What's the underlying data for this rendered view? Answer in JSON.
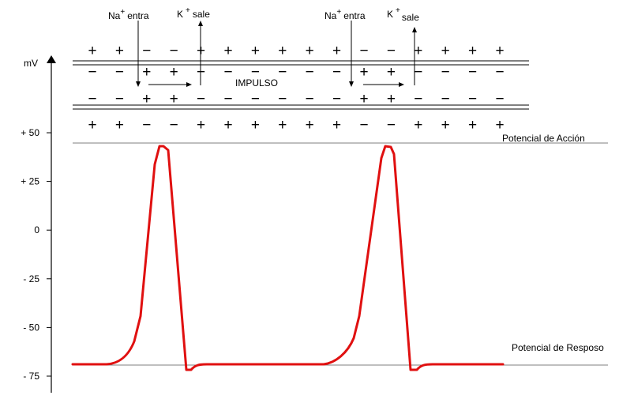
{
  "axis": {
    "unit_label": "mV",
    "ticks": [
      {
        "label": "+ 50",
        "value": 50
      },
      {
        "label": "+ 25",
        "value": 25
      },
      {
        "label": "0",
        "value": 0
      },
      {
        "label": "- 25",
        "value": -25
      },
      {
        "label": "- 50",
        "value": -50
      },
      {
        "label": "- 75",
        "value": -75
      }
    ]
  },
  "reference_lines": {
    "action": {
      "label": "Potencial de Acción",
      "value": 44
    },
    "rest": {
      "label": "Potencial de Resposo",
      "value": -69
    }
  },
  "ions": {
    "na_in": {
      "symbol": "Na",
      "charge": "+",
      "text": "entra"
    },
    "k_out": {
      "symbol": "K",
      "charge": "+",
      "text": "sale"
    }
  },
  "impulse_label": "IMPULSO",
  "membrane": {
    "outer_top": [
      "+",
      "+",
      "−",
      "−",
      "+",
      "+",
      "+",
      "+",
      "+",
      "+",
      "−",
      "−",
      "+",
      "+",
      "+",
      "+"
    ],
    "inner_top": [
      "−",
      "−",
      "+",
      "+",
      "−",
      "−",
      "−",
      "−",
      "−",
      "−",
      "+",
      "+",
      "−",
      "−",
      "−",
      "−"
    ],
    "inner_bottom": [
      "−",
      "−",
      "+",
      "+",
      "−",
      "−",
      "−",
      "−",
      "−",
      "−",
      "+",
      "+",
      "−",
      "−",
      "−",
      "−"
    ],
    "outer_bottom": [
      "+",
      "+",
      "−",
      "−",
      "+",
      "+",
      "+",
      "+",
      "+",
      "+",
      "−",
      "−",
      "+",
      "+",
      "+",
      "+"
    ]
  },
  "trace_color": "#e01010"
}
